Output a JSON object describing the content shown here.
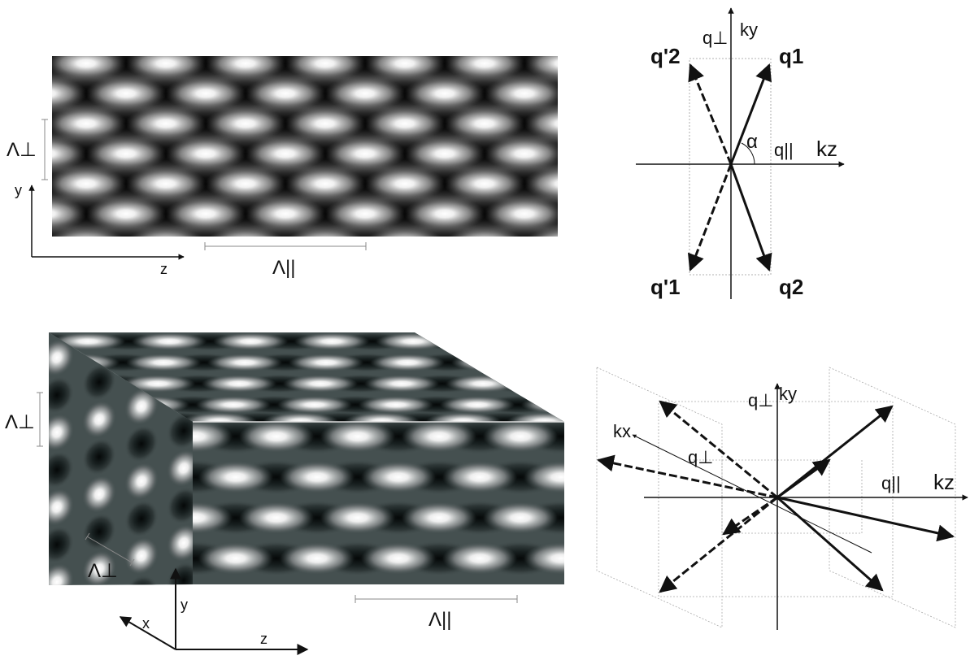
{
  "panel_2d": {
    "lambda_perp": "Λ⊥",
    "lambda_par": "Λ||",
    "axis_y": "y",
    "axis_z": "z"
  },
  "vector_2d": {
    "ky": "ky",
    "kz": "kz",
    "q_perp": "q⊥",
    "q_par": "q||",
    "alpha": "α",
    "q1": "q1",
    "q2": "q2",
    "q1p": "q'1",
    "q2p": "q'2"
  },
  "panel_3d": {
    "lambda_perp_left": "Λ⊥",
    "lambda_perp_bottom": "Λ⊥",
    "lambda_par": "Λ||",
    "axis_x": "x",
    "axis_y": "y",
    "axis_z": "z"
  },
  "vector_3d": {
    "ky": "ky",
    "kx": "kx",
    "kz": "kz",
    "q_perp_top": "q⊥",
    "q_perp_mid": "q⊥",
    "q_par": "q||"
  }
}
